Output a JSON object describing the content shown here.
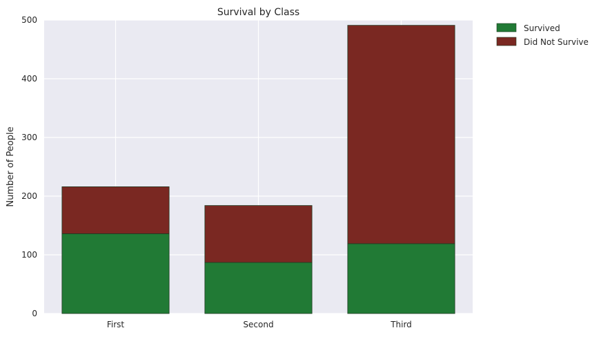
{
  "chart_data": {
    "type": "bar",
    "stacked": true,
    "title": "Survival by Class",
    "xlabel": "",
    "ylabel": "Number of People",
    "categories": [
      "First",
      "Second",
      "Third"
    ],
    "series": [
      {
        "name": "Survived",
        "values": [
          136,
          87,
          119
        ],
        "color": "#217a35"
      },
      {
        "name": "Did Not Survive",
        "values": [
          80,
          97,
          372
        ],
        "color": "#7a2822"
      }
    ],
    "ylim": [
      0,
      500
    ],
    "yticks": [
      0,
      100,
      200,
      300,
      400,
      500
    ],
    "grid": true,
    "legend_position": "outside-top-right",
    "colors": {
      "plot_background": "#eaeaf2",
      "grid": "#ffffff"
    }
  }
}
